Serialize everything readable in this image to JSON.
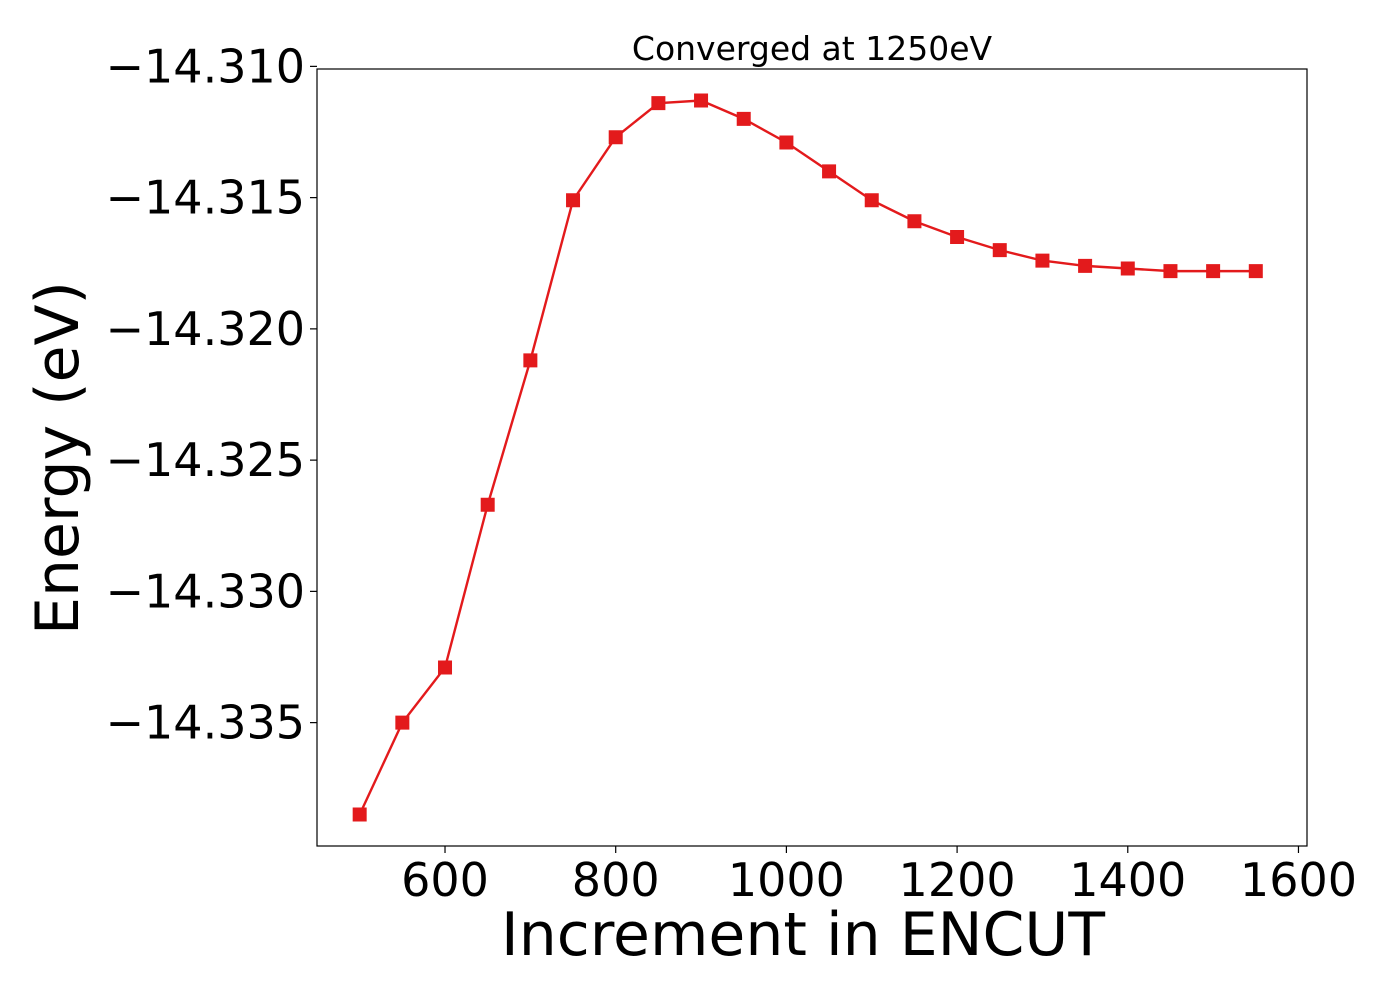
{
  "chart_data": {
    "type": "line",
    "title": "Converged at 1250eV",
    "xlabel": "Increment in ENCUT",
    "ylabel": "Energy (eV)",
    "xlim": [
      450,
      1610
    ],
    "ylim": [
      -14.3397,
      -14.3101
    ],
    "x_ticks": [
      600,
      800,
      1000,
      1200,
      1400,
      1600
    ],
    "x_tick_labels": [
      "600",
      "800",
      "1000",
      "1200",
      "1400",
      "1600"
    ],
    "y_ticks": [
      -14.31,
      -14.315,
      -14.32,
      -14.325,
      -14.33,
      -14.335
    ],
    "y_tick_labels": [
      "−14.310",
      "−14.315",
      "−14.320",
      "−14.325",
      "−14.330",
      "−14.335"
    ],
    "grid": false,
    "marker": "square",
    "series_color": "#e31a1c",
    "x": [
      500,
      550,
      600,
      650,
      700,
      750,
      800,
      850,
      900,
      950,
      1000,
      1050,
      1100,
      1150,
      1200,
      1250,
      1300,
      1350,
      1400,
      1450,
      1500,
      1550
    ],
    "y": [
      -14.3385,
      -14.335,
      -14.3329,
      -14.3267,
      -14.3212,
      -14.3151,
      -14.3127,
      -14.3114,
      -14.3113,
      -14.312,
      -14.3129,
      -14.314,
      -14.3151,
      -14.3159,
      -14.3165,
      -14.317,
      -14.3174,
      -14.3176,
      -14.3177,
      -14.3178,
      -14.3178,
      -14.3178
    ]
  }
}
